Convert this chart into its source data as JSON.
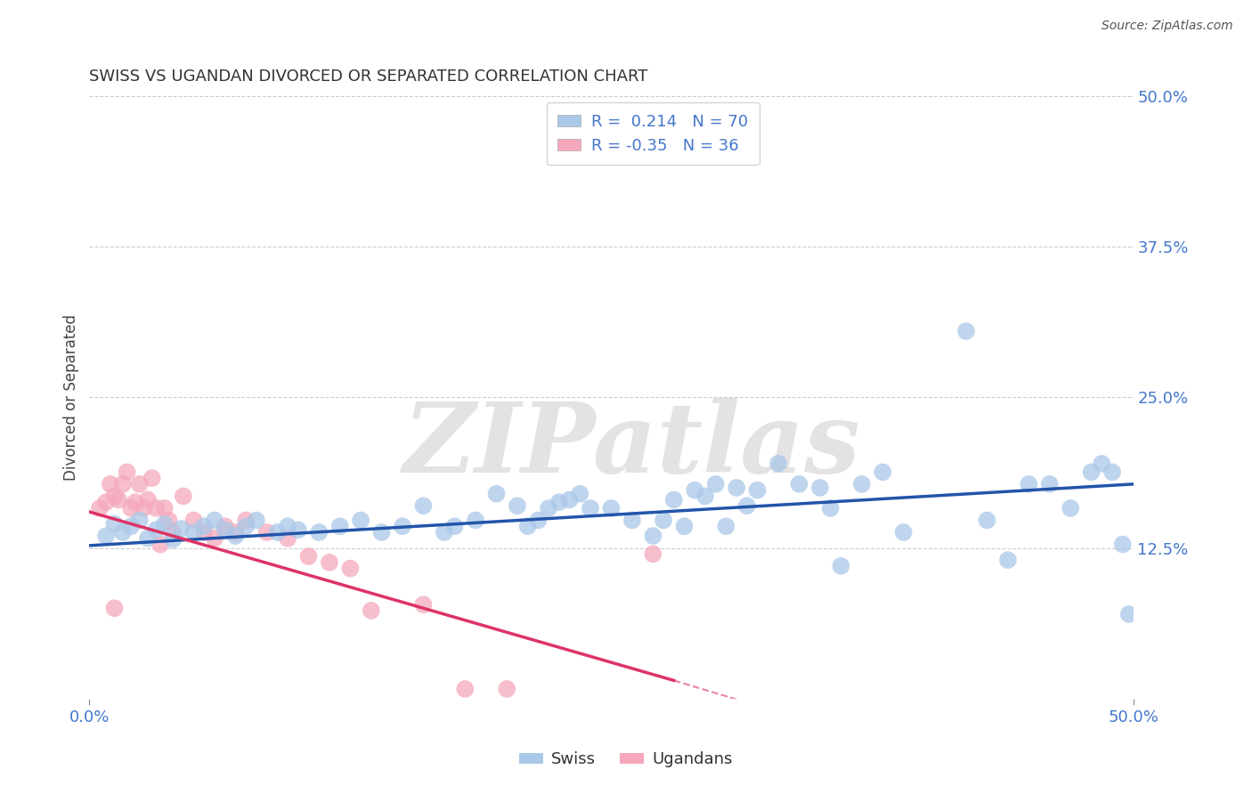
{
  "title": "SWISS VS UGANDAN DIVORCED OR SEPARATED CORRELATION CHART",
  "source": "Source: ZipAtlas.com",
  "ylabel": "Divorced or Separated",
  "xlim": [
    0.0,
    0.5
  ],
  "ylim": [
    0.0,
    0.5
  ],
  "ytick_labels_right": [
    "50.0%",
    "37.5%",
    "25.0%",
    "12.5%"
  ],
  "ytick_positions_right": [
    0.5,
    0.375,
    0.25,
    0.125
  ],
  "grid_color": "#cccccc",
  "background_color": "#ffffff",
  "swiss_color": "#aac8e8",
  "ugandan_color": "#f5a8bc",
  "swiss_line_color": "#2255aa",
  "ugandan_line_color": "#dd3366",
  "swiss_R": 0.214,
  "swiss_N": 70,
  "ugandan_R": -0.35,
  "ugandan_N": 36,
  "swiss_scatter": [
    [
      0.008,
      0.135
    ],
    [
      0.012,
      0.145
    ],
    [
      0.016,
      0.138
    ],
    [
      0.02,
      0.143
    ],
    [
      0.024,
      0.148
    ],
    [
      0.028,
      0.133
    ],
    [
      0.032,
      0.14
    ],
    [
      0.036,
      0.145
    ],
    [
      0.04,
      0.132
    ],
    [
      0.044,
      0.141
    ],
    [
      0.05,
      0.138
    ],
    [
      0.055,
      0.143
    ],
    [
      0.06,
      0.148
    ],
    [
      0.065,
      0.14
    ],
    [
      0.07,
      0.135
    ],
    [
      0.075,
      0.143
    ],
    [
      0.08,
      0.148
    ],
    [
      0.09,
      0.138
    ],
    [
      0.095,
      0.143
    ],
    [
      0.1,
      0.14
    ],
    [
      0.11,
      0.138
    ],
    [
      0.12,
      0.143
    ],
    [
      0.13,
      0.148
    ],
    [
      0.14,
      0.138
    ],
    [
      0.15,
      0.143
    ],
    [
      0.16,
      0.16
    ],
    [
      0.17,
      0.138
    ],
    [
      0.175,
      0.143
    ],
    [
      0.185,
      0.148
    ],
    [
      0.195,
      0.17
    ],
    [
      0.205,
      0.16
    ],
    [
      0.21,
      0.143
    ],
    [
      0.215,
      0.148
    ],
    [
      0.22,
      0.158
    ],
    [
      0.225,
      0.163
    ],
    [
      0.23,
      0.165
    ],
    [
      0.235,
      0.17
    ],
    [
      0.24,
      0.158
    ],
    [
      0.25,
      0.158
    ],
    [
      0.26,
      0.148
    ],
    [
      0.27,
      0.135
    ],
    [
      0.275,
      0.148
    ],
    [
      0.28,
      0.165
    ],
    [
      0.285,
      0.143
    ],
    [
      0.29,
      0.173
    ],
    [
      0.295,
      0.168
    ],
    [
      0.3,
      0.178
    ],
    [
      0.305,
      0.143
    ],
    [
      0.31,
      0.175
    ],
    [
      0.315,
      0.16
    ],
    [
      0.32,
      0.173
    ],
    [
      0.33,
      0.195
    ],
    [
      0.34,
      0.178
    ],
    [
      0.35,
      0.175
    ],
    [
      0.355,
      0.158
    ],
    [
      0.36,
      0.11
    ],
    [
      0.37,
      0.178
    ],
    [
      0.38,
      0.188
    ],
    [
      0.39,
      0.138
    ],
    [
      0.42,
      0.305
    ],
    [
      0.43,
      0.148
    ],
    [
      0.44,
      0.115
    ],
    [
      0.45,
      0.178
    ],
    [
      0.46,
      0.178
    ],
    [
      0.47,
      0.158
    ],
    [
      0.48,
      0.188
    ],
    [
      0.485,
      0.195
    ],
    [
      0.49,
      0.188
    ],
    [
      0.495,
      0.128
    ],
    [
      0.498,
      0.07
    ]
  ],
  "ugandan_scatter": [
    [
      0.005,
      0.158
    ],
    [
      0.008,
      0.163
    ],
    [
      0.01,
      0.178
    ],
    [
      0.012,
      0.168
    ],
    [
      0.014,
      0.165
    ],
    [
      0.016,
      0.178
    ],
    [
      0.018,
      0.188
    ],
    [
      0.02,
      0.158
    ],
    [
      0.022,
      0.163
    ],
    [
      0.024,
      0.178
    ],
    [
      0.026,
      0.158
    ],
    [
      0.028,
      0.165
    ],
    [
      0.03,
      0.183
    ],
    [
      0.032,
      0.158
    ],
    [
      0.034,
      0.128
    ],
    [
      0.036,
      0.158
    ],
    [
      0.038,
      0.148
    ],
    [
      0.04,
      0.138
    ],
    [
      0.045,
      0.168
    ],
    [
      0.05,
      0.148
    ],
    [
      0.055,
      0.138
    ],
    [
      0.06,
      0.133
    ],
    [
      0.065,
      0.143
    ],
    [
      0.07,
      0.138
    ],
    [
      0.075,
      0.148
    ],
    [
      0.085,
      0.138
    ],
    [
      0.095,
      0.133
    ],
    [
      0.105,
      0.118
    ],
    [
      0.115,
      0.113
    ],
    [
      0.125,
      0.108
    ],
    [
      0.135,
      0.073
    ],
    [
      0.16,
      0.078
    ],
    [
      0.18,
      0.008
    ],
    [
      0.2,
      0.008
    ],
    [
      0.27,
      0.12
    ],
    [
      0.012,
      0.075
    ]
  ],
  "swiss_line": [
    0.0,
    0.127,
    0.5,
    0.178
  ],
  "ugandan_line_solid": [
    0.0,
    0.155,
    0.28,
    0.015
  ],
  "ugandan_line_dashed": [
    0.28,
    0.015,
    0.5,
    -0.1
  ]
}
